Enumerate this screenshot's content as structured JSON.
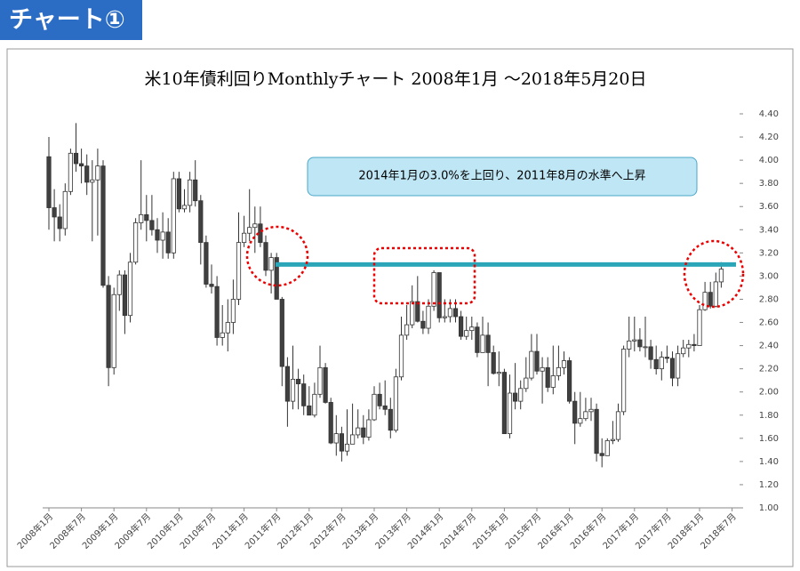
{
  "header": {
    "title": "チャート①"
  },
  "chart_data": {
    "type": "candlestick",
    "title": "米10年債利回りMonthlyチャート  2008年1月 ～2018年5月20日",
    "annotation": "2014年1月の3.0%を上回り、2011年8月の水準へ上昇",
    "reference_line": 3.1,
    "reference_color": "#2aa6b8",
    "up_color": "#ffffff",
    "down_color": "#404040",
    "categories": [
      "2008年1月",
      null,
      null,
      null,
      null,
      null,
      "2008年7月",
      null,
      null,
      null,
      null,
      null,
      "2009年1月",
      null,
      null,
      null,
      null,
      null,
      "2009年7月",
      null,
      null,
      null,
      null,
      null,
      "2010年1月",
      null,
      null,
      null,
      null,
      null,
      "2010年7月",
      null,
      null,
      null,
      null,
      null,
      "2011年1月",
      null,
      null,
      null,
      null,
      null,
      "2011年7月",
      null,
      null,
      null,
      null,
      null,
      "2012年1月",
      null,
      null,
      null,
      null,
      null,
      "2012年7月",
      null,
      null,
      null,
      null,
      null,
      "2013年1月",
      null,
      null,
      null,
      null,
      null,
      "2013年7月",
      null,
      null,
      null,
      null,
      null,
      "2014年1月",
      null,
      null,
      null,
      null,
      null,
      "2014年7月",
      null,
      null,
      null,
      null,
      null,
      "2015年1月",
      null,
      null,
      null,
      null,
      null,
      "2015年7月",
      null,
      null,
      null,
      null,
      null,
      "2016年1月",
      null,
      null,
      null,
      null,
      null,
      "2016年7月",
      null,
      null,
      null,
      null,
      null,
      "2017年1月",
      null,
      null,
      null,
      null,
      null,
      "2017年7月",
      null,
      null,
      null,
      null,
      null,
      "2018年1月",
      null,
      null,
      null,
      null,
      null,
      "2018年7月"
    ],
    "open": [
      4.03,
      3.59,
      3.51,
      3.41,
      3.73,
      4.06,
      3.97,
      3.95,
      3.81,
      3.83,
      3.95,
      2.92,
      2.21,
      2.84,
      3.01,
      2.66,
      3.12,
      3.46,
      3.53,
      3.48,
      3.4,
      3.31,
      3.38,
      3.2,
      3.84,
      3.58,
      3.61,
      3.83,
      3.65,
      3.29,
      2.93,
      2.91,
      2.47,
      2.51,
      2.6,
      2.8,
      3.29,
      3.37,
      3.42,
      3.45,
      3.29,
      3.05,
      3.16,
      2.8,
      2.22,
      1.92,
      2.11,
      2.07,
      1.88,
      1.8,
      1.98,
      2.21,
      1.91,
      1.56,
      1.64,
      1.49,
      1.55,
      1.63,
      1.69,
      1.61,
      1.76,
      1.98,
      1.88,
      1.85,
      1.67,
      2.13,
      2.49,
      2.58,
      2.78,
      2.61,
      2.55,
      2.74,
      3.03,
      2.64,
      2.65,
      2.72,
      2.65,
      2.48,
      2.53,
      2.56,
      2.34,
      2.49,
      2.34,
      2.16,
      2.17,
      1.64,
      1.99,
      1.92,
      2.03,
      2.12,
      2.35,
      2.18,
      2.21,
      2.04,
      2.14,
      2.21,
      2.27,
      1.92,
      1.73,
      1.77,
      1.83,
      1.85,
      1.47,
      1.45,
      1.58,
      1.59,
      1.83,
      2.37,
      2.44,
      2.45,
      2.39,
      2.39,
      2.28,
      2.2,
      2.3,
      2.29,
      2.12,
      2.33,
      2.38,
      2.41,
      2.4,
      2.71,
      2.86,
      2.74,
      2.95,
      null,
      null
    ],
    "high": [
      4.2,
      3.75,
      3.62,
      3.8,
      4.1,
      4.32,
      4.1,
      4.05,
      4.0,
      4.1,
      4.0,
      3.0,
      2.9,
      3.05,
      3.05,
      3.2,
      3.5,
      4.0,
      3.7,
      3.7,
      3.5,
      3.55,
      3.5,
      3.9,
      3.9,
      3.75,
      3.9,
      4.0,
      3.7,
      3.35,
      3.1,
      3.0,
      2.75,
      2.8,
      2.97,
      3.55,
      3.52,
      3.75,
      3.6,
      3.6,
      3.35,
      3.2,
      3.2,
      2.82,
      2.3,
      2.4,
      2.2,
      2.15,
      2.05,
      2.08,
      2.4,
      2.25,
      1.95,
      1.8,
      1.7,
      1.85,
      1.9,
      1.85,
      1.8,
      1.85,
      2.05,
      2.08,
      2.1,
      1.95,
      2.2,
      2.65,
      2.75,
      2.92,
      3.0,
      2.7,
      2.8,
      3.05,
      3.03,
      2.8,
      2.8,
      2.8,
      2.7,
      2.65,
      2.65,
      2.6,
      2.65,
      2.6,
      2.4,
      2.35,
      2.2,
      2.15,
      2.25,
      2.1,
      2.3,
      2.5,
      2.5,
      2.3,
      2.3,
      2.4,
      2.4,
      2.35,
      2.3,
      2.0,
      2.0,
      1.95,
      1.95,
      1.9,
      1.6,
      1.6,
      1.75,
      1.9,
      2.4,
      2.65,
      2.65,
      2.55,
      2.65,
      2.45,
      2.4,
      2.35,
      2.4,
      2.35,
      2.4,
      2.45,
      2.45,
      2.5,
      2.75,
      2.95,
      2.95,
      3.03,
      3.12,
      null,
      null
    ],
    "low": [
      3.4,
      3.3,
      3.3,
      3.35,
      3.7,
      3.9,
      3.8,
      3.7,
      3.3,
      3.35,
      2.9,
      2.05,
      2.15,
      2.7,
      2.5,
      2.6,
      3.1,
      3.4,
      3.3,
      3.35,
      3.2,
      3.15,
      3.15,
      3.15,
      3.55,
      3.55,
      3.55,
      3.6,
      3.1,
      2.9,
      2.85,
      2.4,
      2.4,
      2.35,
      2.5,
      2.75,
      3.25,
      3.3,
      3.2,
      3.25,
      3.0,
      2.85,
      2.8,
      2.05,
      1.7,
      1.85,
      1.85,
      1.8,
      1.8,
      1.78,
      1.95,
      1.9,
      1.55,
      1.45,
      1.4,
      1.45,
      1.55,
      1.6,
      1.55,
      1.58,
      1.75,
      1.85,
      1.8,
      1.6,
      1.65,
      2.1,
      2.45,
      2.55,
      2.6,
      2.5,
      2.5,
      2.7,
      2.6,
      2.6,
      2.6,
      2.6,
      2.45,
      2.45,
      2.45,
      2.3,
      2.35,
      2.05,
      2.15,
      2.05,
      1.64,
      1.6,
      1.85,
      1.85,
      2.0,
      2.1,
      2.15,
      1.9,
      2.0,
      1.98,
      2.1,
      2.15,
      1.9,
      1.55,
      1.7,
      1.75,
      1.75,
      1.4,
      1.35,
      1.45,
      1.55,
      1.57,
      1.8,
      2.3,
      2.35,
      2.35,
      2.3,
      2.2,
      2.15,
      2.1,
      2.25,
      2.05,
      2.05,
      2.3,
      2.3,
      2.35,
      2.4,
      2.7,
      2.72,
      2.73,
      2.9,
      null,
      null
    ],
    "close": [
      3.59,
      3.51,
      3.41,
      3.73,
      4.06,
      3.97,
      3.95,
      3.81,
      3.83,
      3.95,
      2.92,
      2.21,
      2.84,
      3.01,
      2.66,
      3.12,
      3.46,
      3.53,
      3.48,
      3.4,
      3.31,
      3.38,
      3.2,
      3.84,
      3.58,
      3.61,
      3.83,
      3.65,
      3.29,
      2.93,
      2.91,
      2.47,
      2.51,
      2.6,
      2.8,
      3.29,
      3.37,
      3.42,
      3.45,
      3.29,
      3.05,
      3.16,
      2.8,
      2.22,
      1.92,
      2.11,
      2.07,
      1.88,
      1.8,
      1.98,
      2.21,
      1.91,
      1.56,
      1.64,
      1.49,
      1.55,
      1.63,
      1.69,
      1.61,
      1.76,
      1.98,
      1.88,
      1.85,
      1.67,
      2.13,
      2.49,
      2.58,
      2.78,
      2.61,
      2.55,
      2.74,
      3.03,
      2.64,
      2.65,
      2.72,
      2.65,
      2.48,
      2.53,
      2.56,
      2.34,
      2.49,
      2.34,
      2.16,
      2.17,
      1.64,
      1.99,
      1.92,
      2.03,
      2.12,
      2.35,
      2.18,
      2.21,
      2.04,
      2.14,
      2.21,
      2.27,
      1.92,
      1.73,
      1.77,
      1.83,
      1.85,
      1.47,
      1.45,
      1.58,
      1.59,
      1.83,
      2.37,
      2.44,
      2.45,
      2.39,
      2.39,
      2.28,
      2.2,
      2.3,
      2.29,
      2.12,
      2.33,
      2.38,
      2.41,
      2.4,
      2.71,
      2.86,
      2.74,
      2.95,
      3.06,
      null,
      null
    ],
    "ylim": [
      1.0,
      4.4
    ],
    "yticks": [
      {
        "value": 1.0,
        "label": "1.00"
      },
      {
        "value": 1.2,
        "label": "1.20"
      },
      {
        "value": 1.4,
        "label": "1.40"
      },
      {
        "value": 1.6,
        "label": "1.60"
      },
      {
        "value": 1.8,
        "label": "1.80"
      },
      {
        "value": 2.0,
        "label": "2.00"
      },
      {
        "value": 2.2,
        "label": "2.20"
      },
      {
        "value": 2.4,
        "label": "2.40"
      },
      {
        "value": 2.6,
        "label": "2.60"
      },
      {
        "value": 2.8,
        "label": "2.80"
      },
      {
        "value": 3.0,
        "label": "3.00"
      },
      {
        "value": 3.2,
        "label": "3.20"
      },
      {
        "value": 3.4,
        "label": "3.40"
      },
      {
        "value": 3.6,
        "label": "3.60"
      },
      {
        "value": 3.8,
        "label": "3.80"
      },
      {
        "value": 4.0,
        "label": "4.00"
      },
      {
        "value": 4.2,
        "label": "4.20"
      },
      {
        "value": 4.4,
        "label": "4.40"
      }
    ]
  }
}
